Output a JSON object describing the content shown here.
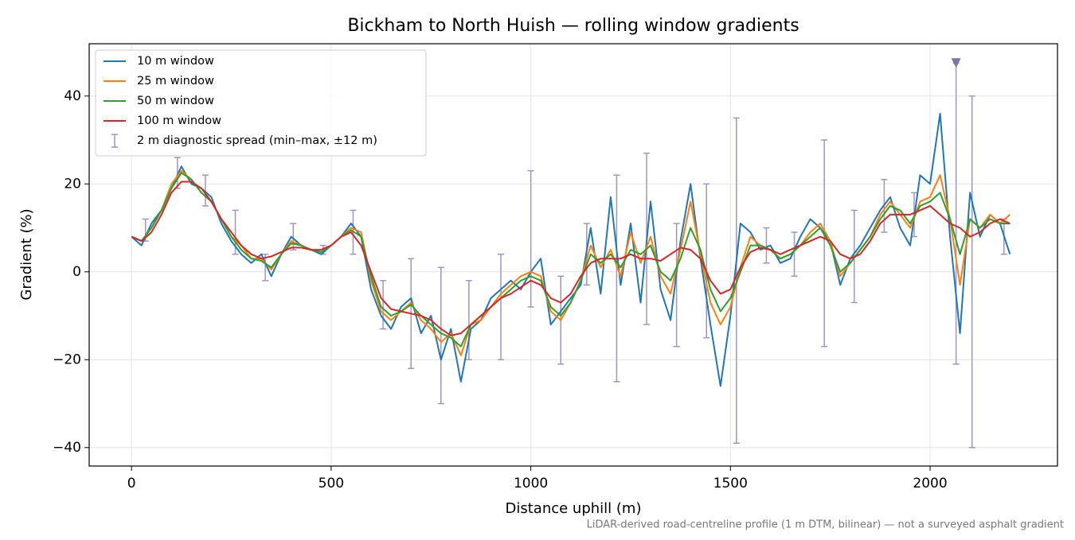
{
  "chart_data": {
    "type": "line",
    "title": "Bickham to North Huish — rolling window gradients",
    "x_label": "Distance uphill (m)",
    "y_label": "Gradient (%)",
    "footnote": "LiDAR-derived road-centreline profile (1 m DTM, bilinear) — not a surveyed asphalt gradient",
    "xlim": [
      -106,
      2319
    ],
    "ylim": [
      -44.2,
      51.9
    ],
    "xticks": [
      0,
      500,
      1000,
      1500,
      2000
    ],
    "yticks": [
      {
        "value": -40,
        "label": "−40"
      },
      {
        "value": -20,
        "label": "−20"
      },
      0,
      20,
      40
    ],
    "grid": true,
    "legend": "upper left",
    "x": [
      0,
      25,
      50,
      75,
      100,
      125,
      150,
      175,
      200,
      225,
      250,
      275,
      300,
      325,
      350,
      375,
      400,
      425,
      450,
      475,
      500,
      525,
      550,
      575,
      600,
      625,
      650,
      675,
      700,
      725,
      750,
      775,
      800,
      825,
      850,
      875,
      900,
      925,
      950,
      975,
      1000,
      1025,
      1050,
      1075,
      1100,
      1125,
      1150,
      1175,
      1200,
      1225,
      1250,
      1275,
      1300,
      1325,
      1350,
      1375,
      1400,
      1425,
      1450,
      1475,
      1500,
      1525,
      1550,
      1575,
      1600,
      1625,
      1650,
      1675,
      1700,
      1725,
      1750,
      1775,
      1800,
      1825,
      1850,
      1875,
      1900,
      1925,
      1950,
      1975,
      2000,
      2025,
      2050,
      2075,
      2100,
      2125,
      2150,
      2175,
      2200
    ],
    "series": [
      {
        "name": "10 m window",
        "color": "#1f77b4",
        "values": [
          8,
          6,
          11,
          14,
          19,
          24,
          20,
          19,
          17,
          11,
          7,
          4,
          2,
          4,
          -1,
          4,
          8,
          6,
          5,
          4,
          6,
          8,
          11,
          8,
          -4,
          -10,
          -13,
          -8,
          -6,
          -14,
          -10,
          -20,
          -13,
          -25,
          -13,
          -11,
          -6,
          -4,
          -2,
          -4,
          0,
          3,
          -12,
          -9,
          -6,
          -3,
          10,
          -5,
          17,
          -3,
          11,
          -7,
          16,
          -4,
          -11,
          7,
          20,
          3,
          -12,
          -26,
          -10,
          11,
          9,
          5,
          6,
          2,
          3,
          8,
          12,
          10,
          7,
          -3,
          3,
          6,
          10,
          14,
          17,
          10,
          6,
          22,
          20,
          36,
          8,
          -14,
          18,
          8,
          13,
          11,
          4
        ]
      },
      {
        "name": "25 m window",
        "color": "#ff7f0e",
        "values": [
          8,
          7,
          10,
          14,
          20,
          23,
          21,
          18,
          16,
          12,
          8,
          6,
          3,
          3,
          0.5,
          4,
          7,
          6,
          5,
          4.5,
          6,
          8,
          10,
          9,
          -2,
          -9,
          -11,
          -9,
          -7,
          -11,
          -13,
          -16,
          -14,
          -19,
          -12,
          -11,
          -8,
          -5,
          -3,
          -1,
          0,
          -1,
          -9,
          -11,
          -7,
          -2,
          6,
          1,
          5,
          -1,
          9,
          2,
          8,
          -1,
          -5,
          5,
          16,
          4,
          -7,
          -12,
          -8,
          1,
          8,
          6,
          5,
          3,
          4,
          6,
          9,
          11,
          7,
          -1,
          2,
          5,
          8,
          13,
          16,
          13,
          10,
          16,
          17,
          22,
          12,
          -3,
          12,
          10,
          13,
          11,
          13
        ]
      },
      {
        "name": "50 m window",
        "color": "#2ca02c",
        "values": [
          8,
          7,
          10,
          14,
          19,
          22.5,
          21,
          18,
          16,
          12,
          8,
          5,
          3,
          2.5,
          1,
          4,
          6.5,
          6,
          5,
          4.5,
          6,
          8,
          9.5,
          8,
          -1,
          -8,
          -10,
          -9,
          -7.5,
          -10,
          -12,
          -14,
          -15,
          -17,
          -12,
          -10,
          -8,
          -6,
          -4,
          -2,
          -1,
          -2,
          -8,
          -10,
          -7,
          -2,
          4,
          2,
          4,
          1,
          5,
          4,
          6,
          0,
          -2,
          3,
          10,
          5,
          -4,
          -9,
          -6,
          0,
          6,
          6,
          5,
          3,
          4,
          6,
          8,
          10,
          6,
          0,
          2,
          5,
          8,
          12,
          15,
          14,
          11,
          15,
          16,
          18,
          12,
          4,
          12,
          10,
          12,
          11,
          11
        ]
      },
      {
        "name": "100 m window",
        "color": "#d62728",
        "values": [
          8,
          7,
          9,
          13,
          18,
          20.5,
          20.5,
          19,
          16,
          12,
          9,
          6,
          4,
          3,
          3.5,
          4.5,
          5.5,
          5.5,
          5,
          5,
          6,
          8,
          9,
          6,
          0,
          -6,
          -8.5,
          -9,
          -9.5,
          -10,
          -11,
          -13,
          -14.5,
          -14,
          -12,
          -10,
          -8,
          -6,
          -5,
          -3.5,
          -2,
          -3,
          -6,
          -7,
          -5,
          -1,
          2,
          3,
          3,
          3,
          4,
          3,
          3,
          2.5,
          4,
          5.5,
          5,
          3,
          -2,
          -5,
          -4,
          1,
          4.5,
          5.5,
          5,
          4,
          5,
          6,
          7,
          8,
          7,
          4,
          3,
          4,
          7,
          11,
          13,
          13,
          13,
          14,
          15,
          13,
          11,
          10,
          8,
          9,
          11,
          12,
          11
        ]
      }
    ],
    "spread": {
      "name": "2 m diagnostic spread (min–max, ±12 m)",
      "color": "#9d95c4",
      "x": [
        35,
        115,
        185,
        260,
        335,
        405,
        480,
        555,
        630,
        700,
        775,
        845,
        925,
        1000,
        1075,
        1140,
        1215,
        1290,
        1365,
        1440,
        1515,
        1590,
        1660,
        1735,
        1810,
        1885,
        1960,
        2065,
        2105,
        2185
      ],
      "low": [
        7,
        19,
        15,
        4,
        -2,
        5,
        4,
        4,
        -13,
        -22,
        -30,
        -20,
        -20,
        -8,
        -21,
        -3,
        -25,
        -12,
        -17,
        -15,
        -39,
        2,
        -1,
        -17,
        -7,
        9,
        8,
        -21,
        -40,
        4
      ],
      "high": [
        12,
        26,
        22,
        14,
        4,
        11,
        6,
        14,
        -2,
        3,
        1,
        -2,
        4,
        23,
        -1,
        11,
        22,
        27,
        11,
        20,
        35,
        10,
        9,
        30,
        14,
        21,
        18,
        47.5,
        40,
        12
      ]
    },
    "clipped_marker": {
      "x": 2065,
      "y": 47.5,
      "color": "#7f72a8"
    }
  }
}
